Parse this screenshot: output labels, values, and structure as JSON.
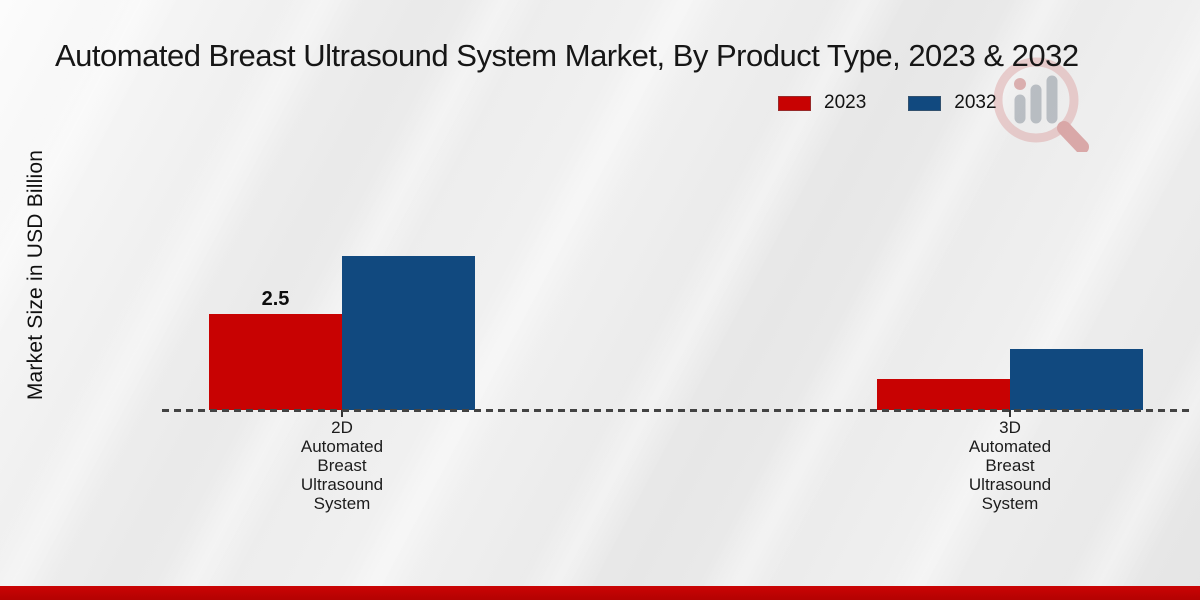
{
  "page": {
    "title": "Automated Breast Ultrasound System Market, By Product Type, 2023 & 2032"
  },
  "watermark": {
    "icon": "magnifier-bar-chart-logo"
  },
  "colors": {
    "series_2023": "#c80202",
    "series_2032": "#11497f",
    "footer_strip": "#bf0303",
    "baseline": "#434343",
    "background": "#eaeaea"
  },
  "chart_data": {
    "type": "bar",
    "title": "Automated Breast Ultrasound System Market, By Product Type, 2023 & 2032",
    "xlabel": "",
    "ylabel": "Market Size in USD Billion",
    "categories": [
      "2D\nAutomated\nBreast\nUltrasound\nSystem",
      "3D\nAutomated\nBreast\nUltrasound\nSystem"
    ],
    "series": [
      {
        "name": "2023",
        "color": "#c80202",
        "values": [
          2.5,
          0.8
        ],
        "labels": [
          "2.5",
          ""
        ]
      },
      {
        "name": "2032",
        "color": "#11497f",
        "values": [
          4.0,
          1.6
        ],
        "labels": [
          "",
          ""
        ]
      }
    ],
    "ylim": [
      0,
      4.5
    ],
    "grid": false,
    "baseline_style": "dashed",
    "legend_position": "top-right"
  }
}
